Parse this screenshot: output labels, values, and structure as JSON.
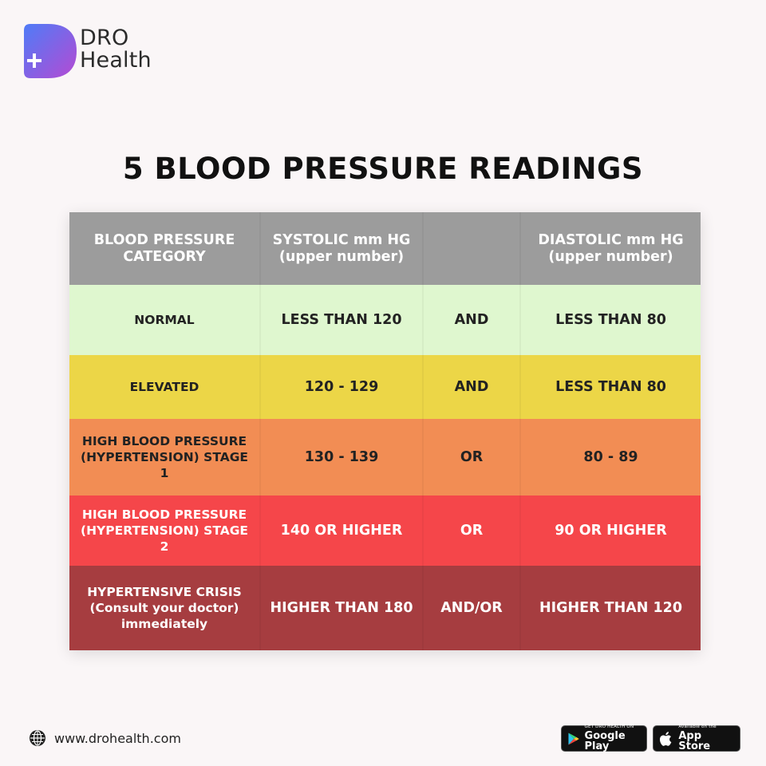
{
  "brand": {
    "line1": "DRO",
    "line2": "Health"
  },
  "title": "5 BLOOD PRESSURE READINGS",
  "table": {
    "header": {
      "category": "BLOOD PRESSURE CATEGORY",
      "systolic": "SYSTOLIC mm HG (upper number)",
      "connector": "",
      "diastolic": "DIASTOLIC mm HG (upper number)"
    },
    "rows": [
      {
        "category": "NORMAL",
        "systolic": "LESS THAN 120",
        "connector": "AND",
        "diastolic": "LESS THAN 80",
        "color": "#dff7cf"
      },
      {
        "category": "ELEVATED",
        "systolic": "120 - 129",
        "connector": "AND",
        "diastolic": "LESS THAN 80",
        "color": "#ecd647"
      },
      {
        "category": "HIGH BLOOD PRESSURE (HYPERTENSION) STAGE 1",
        "systolic": "130 - 139",
        "connector": "OR",
        "diastolic": "80 - 89",
        "color": "#f28d54"
      },
      {
        "category": "HIGH BLOOD PRESSURE (HYPERTENSION) STAGE 2",
        "systolic": "140 OR HIGHER",
        "connector": "OR",
        "diastolic": "90 OR HIGHER",
        "color": "#f5464a"
      },
      {
        "category": "HYPERTENSIVE CRISIS (Consult your doctor) immediately",
        "systolic": "HIGHER THAN 180",
        "connector": "AND/OR",
        "diastolic": "HIGHER THAN 120",
        "color": "#a63d40"
      }
    ]
  },
  "footer": {
    "website": "www.drohealth.com",
    "google_play": {
      "small": "GET DRO HEALTH ON",
      "big": "Google Play",
      "icon": "google-play-icon"
    },
    "app_store": {
      "small": "Available on the",
      "big": "App Store",
      "icon": "apple-icon"
    }
  },
  "colors": {
    "header": "#9c9c9c",
    "logo_gradient": [
      "#5b6ef5",
      "#b04bd6"
    ]
  }
}
